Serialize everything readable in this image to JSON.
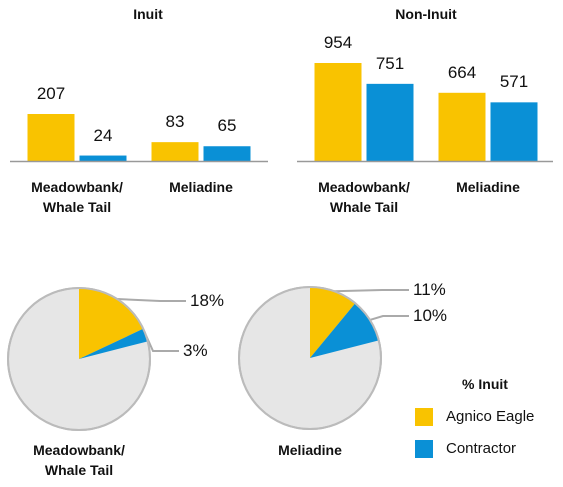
{
  "chart_data": [
    {
      "type": "bar",
      "title": "Inuit",
      "categories": [
        "Meadowbank/\nWhale Tail",
        "Meliadine"
      ],
      "series": [
        {
          "name": "Agnico Eagle",
          "color": "#f9c300",
          "values": [
            207,
            83
          ]
        },
        {
          "name": "Contractor",
          "color": "#0a90d6",
          "values": [
            24,
            65
          ]
        }
      ]
    },
    {
      "type": "bar",
      "title": "Non-Inuit",
      "categories": [
        "Meadowbank/\nWhale Tail",
        "Meliadine"
      ],
      "series": [
        {
          "name": "Agnico Eagle",
          "color": "#f9c300",
          "values": [
            954,
            664
          ]
        },
        {
          "name": "Contractor",
          "color": "#0a90d6",
          "values": [
            751,
            571
          ]
        }
      ]
    },
    {
      "type": "pie",
      "title": "Meadowbank/\nWhale Tail",
      "values": [
        18,
        3
      ],
      "value_labels": [
        "18%",
        "3%"
      ],
      "colors": [
        "#f9c300",
        "#0a90d6"
      ],
      "rest_color": "#e6e6e6"
    },
    {
      "type": "pie",
      "title": "Meliadine",
      "values": [
        11,
        10
      ],
      "value_labels": [
        "11%",
        "10%"
      ],
      "colors": [
        "#f9c300",
        "#0a90d6"
      ],
      "rest_color": "#e6e6e6"
    }
  ],
  "legend": {
    "title": "% Inuit"
  }
}
